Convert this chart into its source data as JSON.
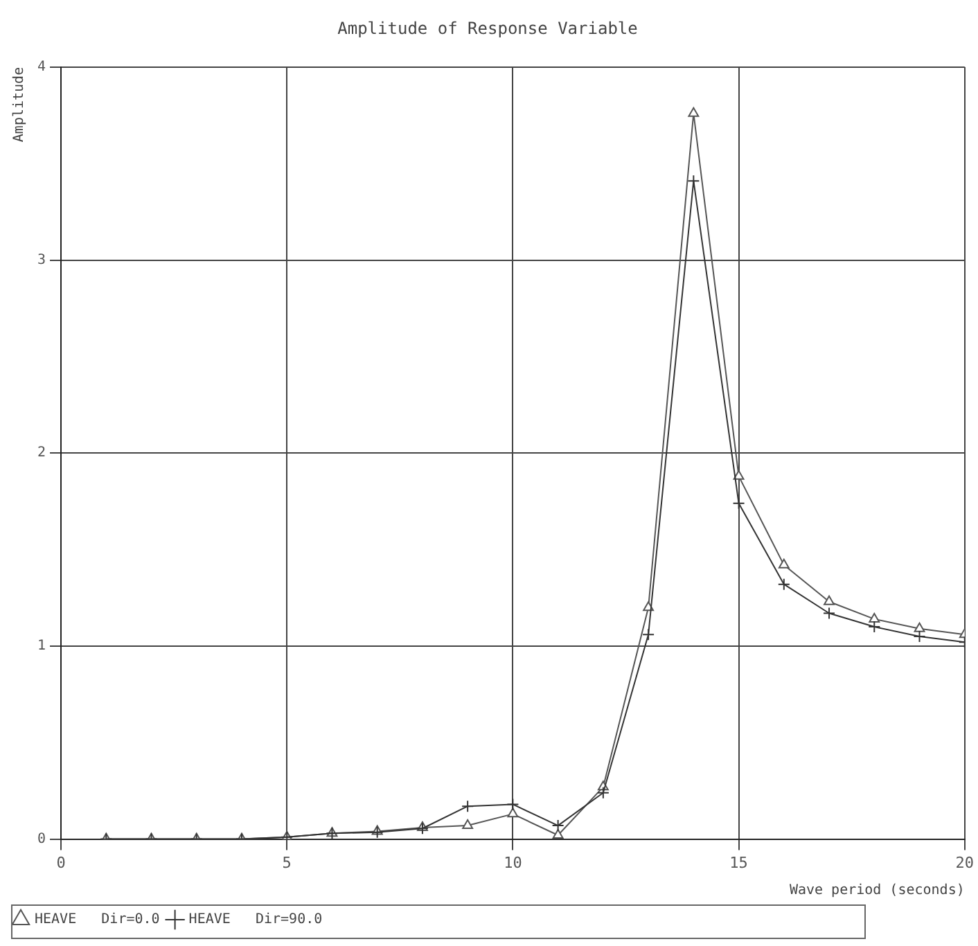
{
  "chart_data": {
    "type": "line",
    "title": "Amplitude of Response Variable",
    "xlabel": "Wave period (seconds)",
    "ylabel": "Amplitude",
    "x": [
      1,
      2,
      3,
      4,
      5,
      6,
      7,
      8,
      9,
      10,
      11,
      12,
      13,
      14,
      15,
      16,
      17,
      18,
      19,
      20
    ],
    "series": [
      {
        "name": "HEAVE   Dir=0.0",
        "color": "#555555",
        "marker": "triangle",
        "values": [
          0,
          0,
          0,
          0,
          0.01,
          0.03,
          0.04,
          0.06,
          0.07,
          0.13,
          0.02,
          0.27,
          1.2,
          3.76,
          1.88,
          1.42,
          1.23,
          1.14,
          1.09,
          1.06
        ]
      },
      {
        "name": "HEAVE   Dir=90.0",
        "color": "#333333",
        "marker": "cross",
        "values": [
          0,
          0,
          0,
          0,
          0.01,
          0.03,
          0.035,
          0.055,
          0.17,
          0.18,
          0.07,
          0.24,
          1.06,
          3.41,
          1.74,
          1.32,
          1.17,
          1.1,
          1.05,
          1.02
        ]
      }
    ],
    "xlim": [
      0,
      20
    ],
    "xticks": [
      0,
      5,
      10,
      15,
      20
    ],
    "ylim": [
      0,
      4
    ],
    "yticks": [
      0,
      1,
      2,
      3,
      4
    ],
    "grid": true,
    "legend": "bottom left",
    "line_style": "solid"
  }
}
